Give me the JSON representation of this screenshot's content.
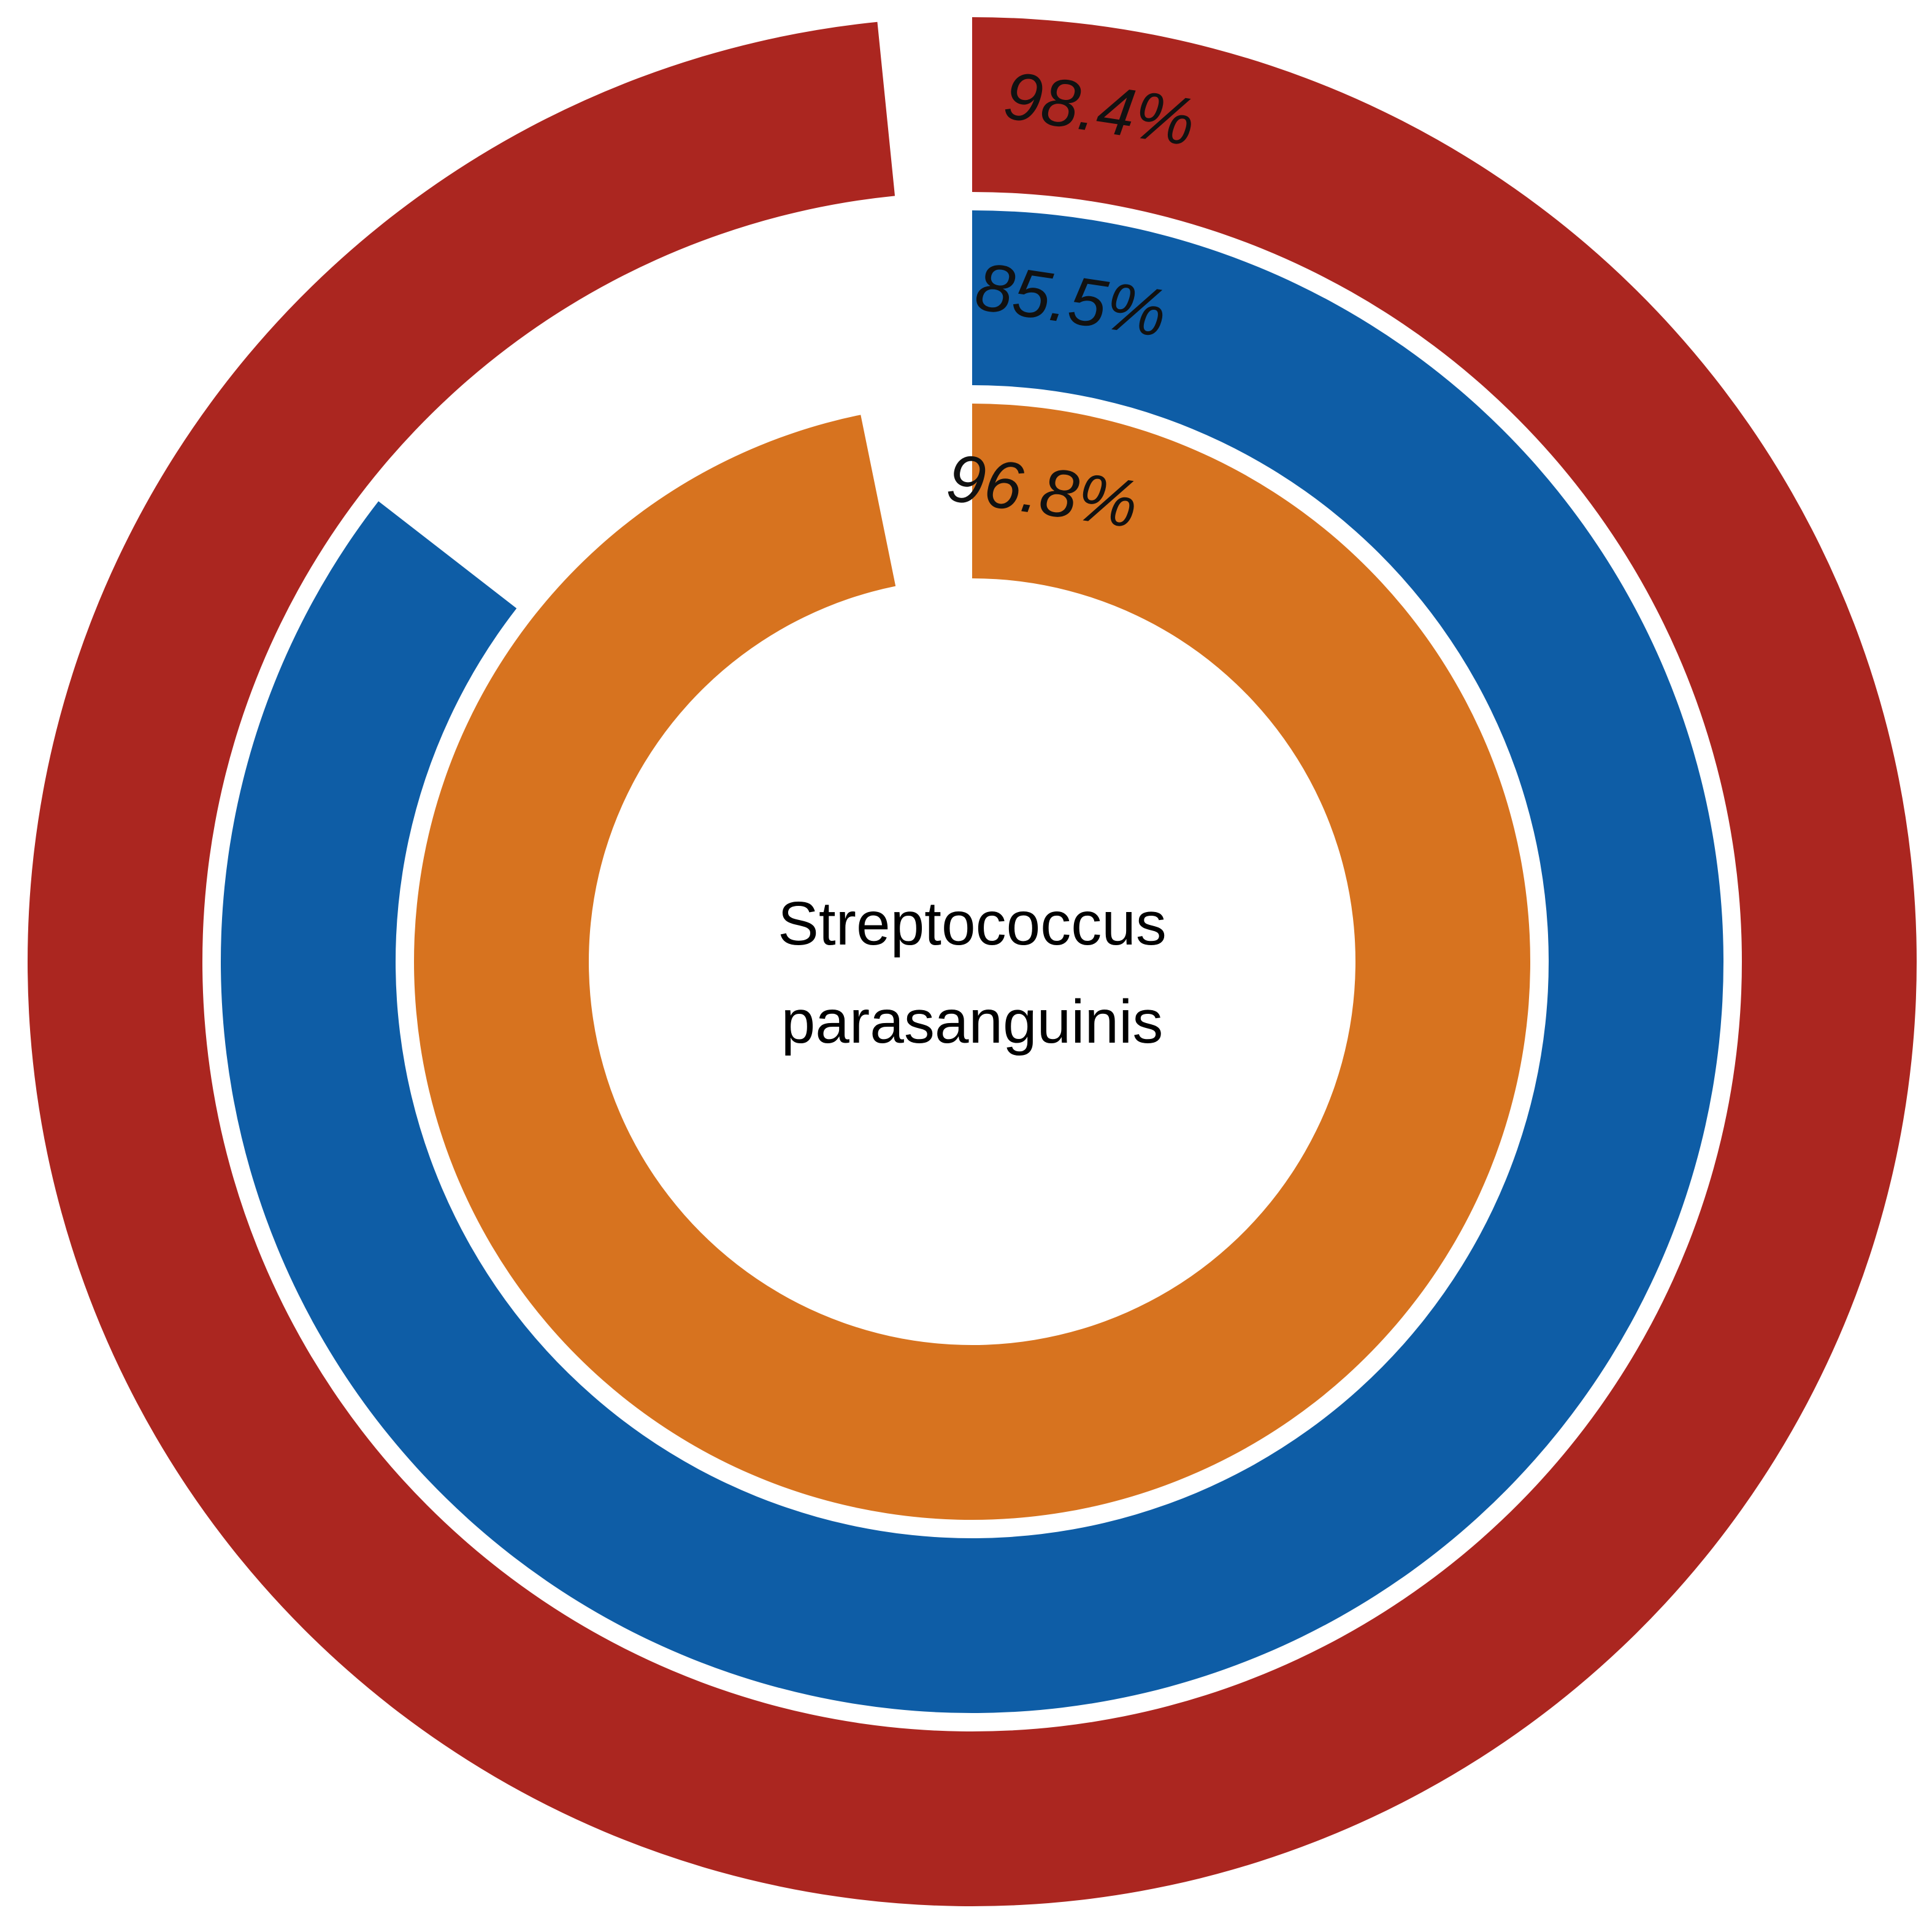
{
  "chart_data": {
    "type": "pie",
    "subtype": "concentric-radial-bar",
    "center_text": {
      "line1": "Streptococcus",
      "line2": "parasanguinis"
    },
    "series": [
      {
        "ring": "outer",
        "value": 98.4,
        "label": "98.4%",
        "color": "#AB2620"
      },
      {
        "ring": "middle",
        "value": 85.5,
        "label": "85.5%",
        "color": "#0E5DA6"
      },
      {
        "ring": "inner",
        "value": 96.8,
        "label": "96.8%",
        "color": "#D7731F"
      }
    ],
    "value_max": 100,
    "start_angle": "top",
    "direction": "clockwise"
  }
}
